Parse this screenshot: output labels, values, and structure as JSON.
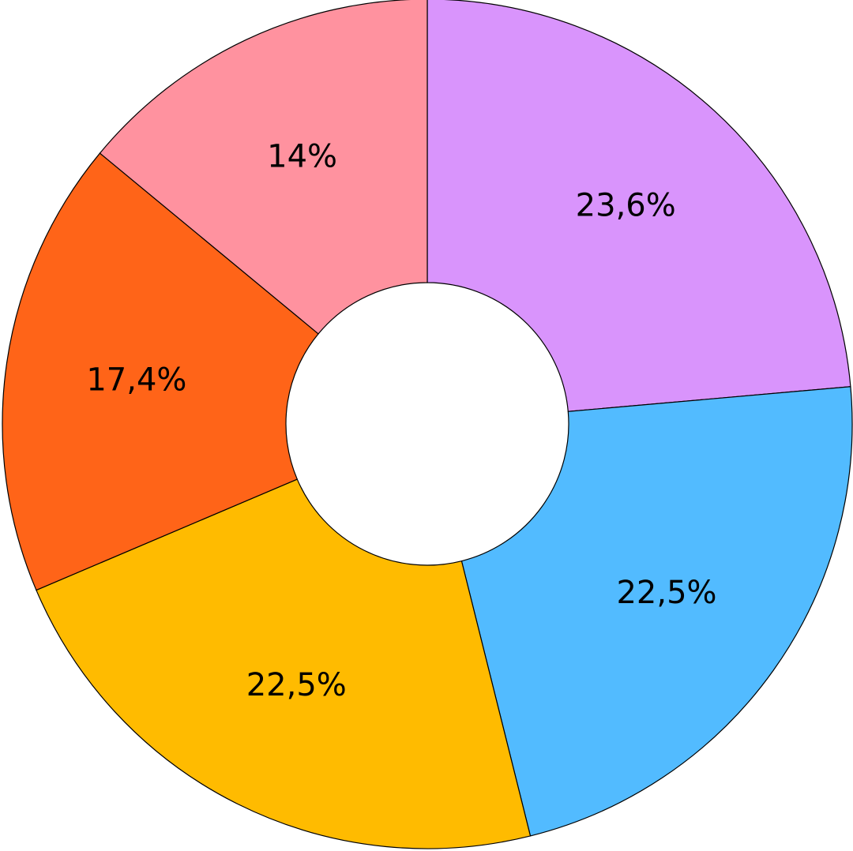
{
  "chart_data": {
    "type": "donut",
    "values": [
      23.6,
      22.5,
      22.5,
      17.4,
      14
    ],
    "value_labels": [
      "23,6%",
      "22,5%",
      "22,5%",
      "17,4%",
      "14%"
    ],
    "colors": [
      "#d994fc",
      "#52bbff",
      "#ffbb00",
      "#ff6418",
      "#ff929f"
    ]
  }
}
